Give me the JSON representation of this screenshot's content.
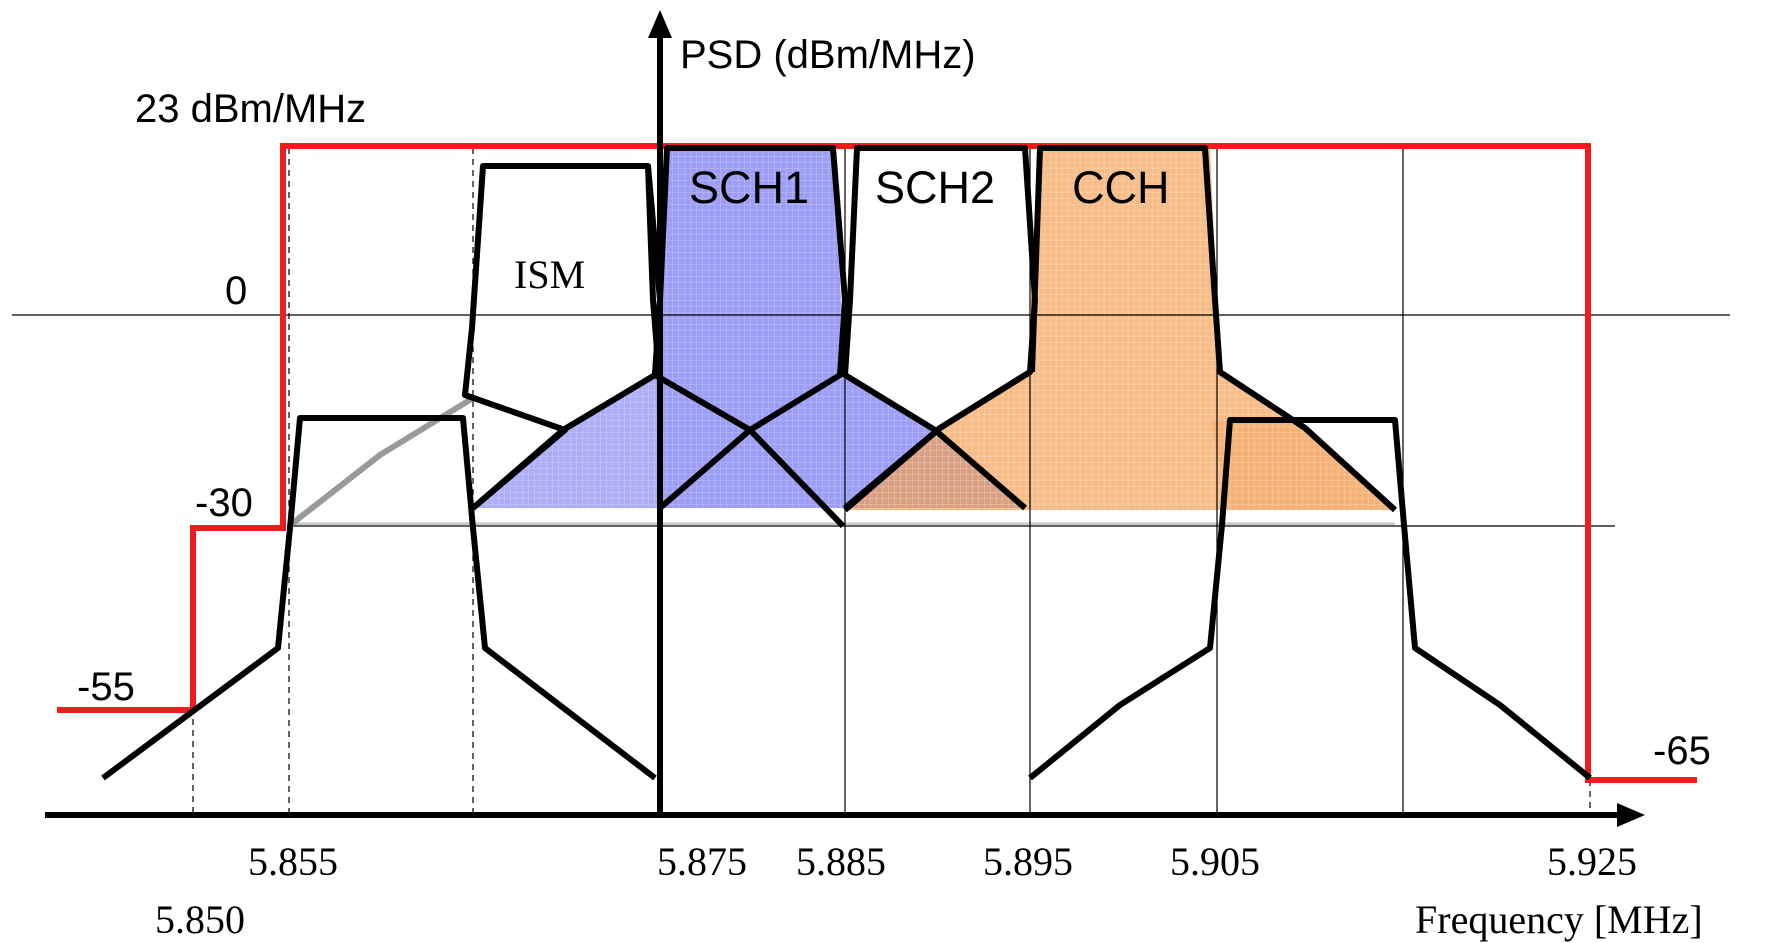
{
  "y_axis": {
    "label": "PSD  (dBm/MHz)"
  },
  "x_axis": {
    "label": "Frequency [MHz]"
  },
  "level_labels": {
    "max": "23 dBm/MHz",
    "zero": "0",
    "minus30": "-30",
    "minus55": "-55",
    "minus65": "-65"
  },
  "freq_labels": {
    "f5850": "5.850",
    "f5855": "5.855",
    "f5875": "5.875",
    "f5885": "5.885",
    "f5895": "5.895",
    "f5905": "5.905",
    "f5925": "5.925"
  },
  "bands": {
    "ism": "ISM",
    "sch1": "SCH1",
    "sch2": "SCH2",
    "cch": "CCH"
  },
  "colors": {
    "regulatory_mask": "#ee1c1c",
    "sch1_fill": "#6a6cf0",
    "cch_fill": "#f4a055",
    "mask_outline": "#000000"
  }
}
